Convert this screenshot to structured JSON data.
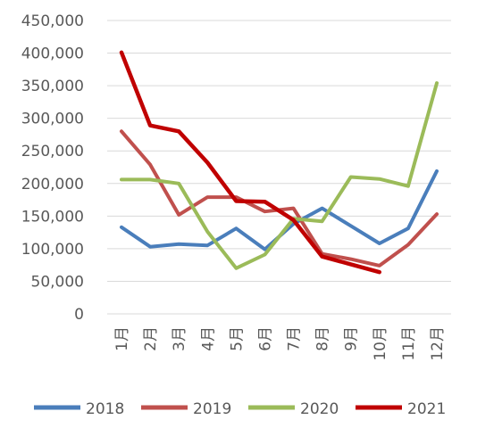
{
  "chart_data": {
    "type": "line",
    "title": "",
    "xlabel": "",
    "ylabel": "",
    "categories": [
      "1月",
      "2月",
      "3月",
      "4月",
      "5月",
      "6月",
      "7月",
      "8月",
      "9月",
      "10月",
      "11月",
      "12月"
    ],
    "y_tick_labels": [
      "0",
      "50,000",
      "100,000",
      "150,000",
      "200,000",
      "250,000",
      "300,000",
      "350,000",
      "400,000",
      "450,000"
    ],
    "ylim": [
      0,
      450000
    ],
    "y_tick_step": 50000,
    "grid": true,
    "legend_position": "bottom",
    "series": [
      {
        "name": "2018",
        "color": "#4a7ebb",
        "values": [
          133000,
          103000,
          107000,
          105000,
          131000,
          99000,
          138000,
          162000,
          135000,
          108000,
          131000,
          219000
        ]
      },
      {
        "name": "2019",
        "color": "#c0504d",
        "values": [
          280000,
          229000,
          152000,
          179000,
          179000,
          157000,
          162000,
          92000,
          84000,
          74000,
          106000,
          153000
        ]
      },
      {
        "name": "2020",
        "color": "#9bbb59",
        "values": [
          206000,
          206000,
          200000,
          126000,
          70000,
          91000,
          146000,
          142000,
          210000,
          207000,
          196000,
          354000
        ]
      },
      {
        "name": "2021",
        "color": "#c00000",
        "values": [
          401000,
          289000,
          280000,
          232000,
          173000,
          172000,
          144000,
          88000,
          76000,
          64000,
          null,
          null
        ]
      }
    ]
  }
}
